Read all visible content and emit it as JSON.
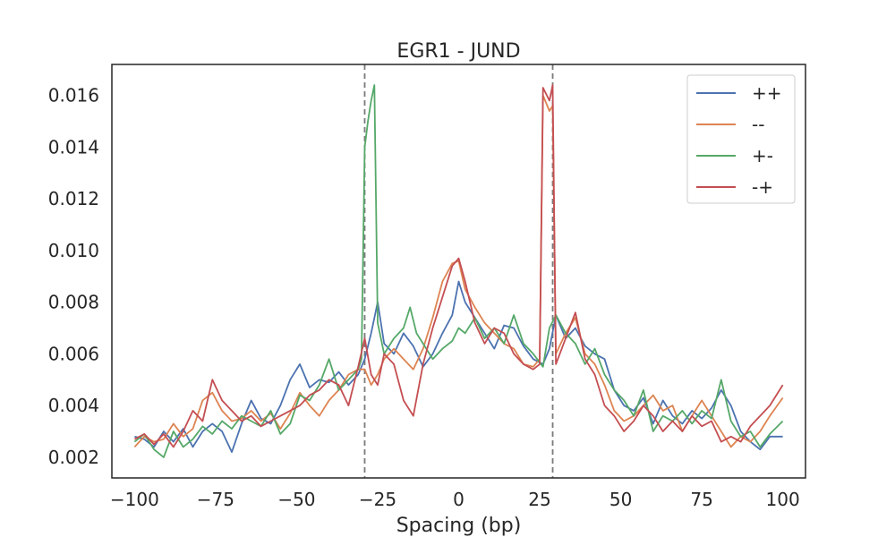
{
  "chart_data": {
    "type": "line",
    "title": "EGR1 - JUND",
    "xlabel": "Spacing (bp)",
    "ylabel": "",
    "xlim": [
      -107,
      107
    ],
    "ylim": [
      0.0012,
      0.0172
    ],
    "x_ticks": [
      -100,
      -75,
      -50,
      -25,
      0,
      25,
      50,
      75,
      100
    ],
    "x_tick_labels": [
      "−100",
      "−75",
      "−50",
      "−25",
      "0",
      "25",
      "50",
      "75",
      "100"
    ],
    "y_ticks": [
      0.002,
      0.004,
      0.006,
      0.008,
      0.01,
      0.012,
      0.014,
      0.016
    ],
    "y_tick_labels": [
      "0.002",
      "0.004",
      "0.006",
      "0.008",
      "0.010",
      "0.012",
      "0.014",
      "0.016"
    ],
    "grid": false,
    "legend_position": "top-right",
    "reference_lines": [
      -29,
      29
    ],
    "series": [
      {
        "name": "++",
        "color": "#4c72b0",
        "points": [
          [
            -100,
            0.0028
          ],
          [
            -97,
            0.0027
          ],
          [
            -94,
            0.0024
          ],
          [
            -91,
            0.003
          ],
          [
            -88,
            0.0026
          ],
          [
            -85,
            0.0031
          ],
          [
            -82,
            0.0024
          ],
          [
            -79,
            0.003
          ],
          [
            -76,
            0.0033
          ],
          [
            -73,
            0.003
          ],
          [
            -70,
            0.0022
          ],
          [
            -67,
            0.0033
          ],
          [
            -64,
            0.0042
          ],
          [
            -61,
            0.0035
          ],
          [
            -58,
            0.0033
          ],
          [
            -55,
            0.004
          ],
          [
            -52,
            0.005
          ],
          [
            -49,
            0.0056
          ],
          [
            -46,
            0.0047
          ],
          [
            -43,
            0.005
          ],
          [
            -40,
            0.0049
          ],
          [
            -37,
            0.0053
          ],
          [
            -34,
            0.0048
          ],
          [
            -31,
            0.0052
          ],
          [
            -29,
            0.0058
          ],
          [
            -27,
            0.0068
          ],
          [
            -25,
            0.008
          ],
          [
            -23,
            0.0064
          ],
          [
            -20,
            0.006
          ],
          [
            -17,
            0.0068
          ],
          [
            -14,
            0.0063
          ],
          [
            -11,
            0.0055
          ],
          [
            -8,
            0.006
          ],
          [
            -5,
            0.0068
          ],
          [
            -2,
            0.0075
          ],
          [
            0,
            0.0088
          ],
          [
            2,
            0.008
          ],
          [
            5,
            0.0074
          ],
          [
            8,
            0.0068
          ],
          [
            11,
            0.0062
          ],
          [
            14,
            0.0071
          ],
          [
            17,
            0.007
          ],
          [
            20,
            0.0063
          ],
          [
            23,
            0.0058
          ],
          [
            26,
            0.0056
          ],
          [
            28,
            0.0062
          ],
          [
            30,
            0.0075
          ],
          [
            33,
            0.0066
          ],
          [
            36,
            0.007
          ],
          [
            39,
            0.0063
          ],
          [
            42,
            0.006
          ],
          [
            45,
            0.0058
          ],
          [
            48,
            0.0046
          ],
          [
            51,
            0.004
          ],
          [
            54,
            0.0038
          ],
          [
            57,
            0.0043
          ],
          [
            60,
            0.0033
          ],
          [
            63,
            0.0042
          ],
          [
            66,
            0.0036
          ],
          [
            69,
            0.0033
          ],
          [
            72,
            0.0038
          ],
          [
            75,
            0.0035
          ],
          [
            78,
            0.0039
          ],
          [
            81,
            0.0046
          ],
          [
            84,
            0.004
          ],
          [
            87,
            0.003
          ],
          [
            90,
            0.0026
          ],
          [
            93,
            0.0023
          ],
          [
            96,
            0.0028
          ],
          [
            100,
            0.0028
          ]
        ]
      },
      {
        "name": "--",
        "color": "#dd8452",
        "points": [
          [
            -100,
            0.0024
          ],
          [
            -97,
            0.0028
          ],
          [
            -94,
            0.0026
          ],
          [
            -91,
            0.0027
          ],
          [
            -88,
            0.0033
          ],
          [
            -85,
            0.0028
          ],
          [
            -82,
            0.0031
          ],
          [
            -79,
            0.0042
          ],
          [
            -76,
            0.0045
          ],
          [
            -73,
            0.0038
          ],
          [
            -70,
            0.0034
          ],
          [
            -67,
            0.0035
          ],
          [
            -64,
            0.0038
          ],
          [
            -61,
            0.0034
          ],
          [
            -58,
            0.0037
          ],
          [
            -55,
            0.0031
          ],
          [
            -52,
            0.0037
          ],
          [
            -49,
            0.0045
          ],
          [
            -46,
            0.004
          ],
          [
            -43,
            0.0036
          ],
          [
            -40,
            0.0042
          ],
          [
            -37,
            0.0046
          ],
          [
            -34,
            0.0052
          ],
          [
            -31,
            0.0054
          ],
          [
            -29,
            0.0054
          ],
          [
            -27,
            0.0048
          ],
          [
            -25,
            0.0052
          ],
          [
            -23,
            0.0058
          ],
          [
            -20,
            0.0062
          ],
          [
            -17,
            0.0058
          ],
          [
            -14,
            0.0054
          ],
          [
            -11,
            0.0062
          ],
          [
            -8,
            0.0074
          ],
          [
            -5,
            0.0088
          ],
          [
            -2,
            0.0095
          ],
          [
            0,
            0.0096
          ],
          [
            2,
            0.0085
          ],
          [
            5,
            0.0078
          ],
          [
            8,
            0.0072
          ],
          [
            11,
            0.0068
          ],
          [
            14,
            0.0064
          ],
          [
            17,
            0.0062
          ],
          [
            20,
            0.0056
          ],
          [
            23,
            0.0055
          ],
          [
            25,
            0.0058
          ],
          [
            26,
            0.016
          ],
          [
            28,
            0.0154
          ],
          [
            29,
            0.0156
          ],
          [
            30,
            0.006
          ],
          [
            33,
            0.0068
          ],
          [
            36,
            0.0074
          ],
          [
            39,
            0.006
          ],
          [
            42,
            0.0056
          ],
          [
            45,
            0.0048
          ],
          [
            48,
            0.0038
          ],
          [
            51,
            0.0034
          ],
          [
            54,
            0.0036
          ],
          [
            57,
            0.004
          ],
          [
            60,
            0.0044
          ],
          [
            63,
            0.0038
          ],
          [
            66,
            0.004
          ],
          [
            69,
            0.003
          ],
          [
            72,
            0.0036
          ],
          [
            75,
            0.0042
          ],
          [
            78,
            0.0036
          ],
          [
            81,
            0.003
          ],
          [
            84,
            0.0024
          ],
          [
            87,
            0.0028
          ],
          [
            90,
            0.0026
          ],
          [
            93,
            0.003
          ],
          [
            96,
            0.0036
          ],
          [
            100,
            0.0043
          ]
        ]
      },
      {
        "name": "+-",
        "color": "#55a868",
        "points": [
          [
            -100,
            0.0026
          ],
          [
            -97,
            0.0029
          ],
          [
            -94,
            0.0023
          ],
          [
            -91,
            0.002
          ],
          [
            -88,
            0.003
          ],
          [
            -85,
            0.0024
          ],
          [
            -82,
            0.0027
          ],
          [
            -79,
            0.0032
          ],
          [
            -76,
            0.0029
          ],
          [
            -73,
            0.0034
          ],
          [
            -70,
            0.0031
          ],
          [
            -67,
            0.0036
          ],
          [
            -64,
            0.0034
          ],
          [
            -61,
            0.0032
          ],
          [
            -58,
            0.0038
          ],
          [
            -55,
            0.0029
          ],
          [
            -52,
            0.0033
          ],
          [
            -49,
            0.0044
          ],
          [
            -46,
            0.0042
          ],
          [
            -43,
            0.0048
          ],
          [
            -40,
            0.0058
          ],
          [
            -37,
            0.0046
          ],
          [
            -34,
            0.005
          ],
          [
            -31,
            0.0054
          ],
          [
            -30,
            0.0058
          ],
          [
            -29,
            0.014
          ],
          [
            -28,
            0.015
          ],
          [
            -27,
            0.0158
          ],
          [
            -26,
            0.0164
          ],
          [
            -25,
            0.0072
          ],
          [
            -23,
            0.006
          ],
          [
            -20,
            0.0066
          ],
          [
            -17,
            0.007
          ],
          [
            -15,
            0.0078
          ],
          [
            -13,
            0.0068
          ],
          [
            -11,
            0.0064
          ],
          [
            -8,
            0.0058
          ],
          [
            -5,
            0.0062
          ],
          [
            -2,
            0.0065
          ],
          [
            0,
            0.007
          ],
          [
            2,
            0.0068
          ],
          [
            5,
            0.0074
          ],
          [
            8,
            0.0066
          ],
          [
            11,
            0.007
          ],
          [
            14,
            0.0064
          ],
          [
            17,
            0.0075
          ],
          [
            20,
            0.0064
          ],
          [
            23,
            0.006
          ],
          [
            26,
            0.0055
          ],
          [
            28,
            0.007
          ],
          [
            30,
            0.0075
          ],
          [
            33,
            0.0068
          ],
          [
            36,
            0.0064
          ],
          [
            39,
            0.0056
          ],
          [
            42,
            0.0062
          ],
          [
            45,
            0.0052
          ],
          [
            48,
            0.0046
          ],
          [
            51,
            0.0042
          ],
          [
            54,
            0.0036
          ],
          [
            57,
            0.0046
          ],
          [
            60,
            0.003
          ],
          [
            63,
            0.0036
          ],
          [
            66,
            0.0034
          ],
          [
            69,
            0.0038
          ],
          [
            72,
            0.0033
          ],
          [
            75,
            0.0038
          ],
          [
            78,
            0.0035
          ],
          [
            81,
            0.005
          ],
          [
            84,
            0.0034
          ],
          [
            87,
            0.0028
          ],
          [
            90,
            0.003
          ],
          [
            93,
            0.0024
          ],
          [
            96,
            0.0029
          ],
          [
            100,
            0.0034
          ]
        ]
      },
      {
        "name": "-+",
        "color": "#c44e52",
        "points": [
          [
            -100,
            0.0027
          ],
          [
            -97,
            0.0029
          ],
          [
            -94,
            0.0025
          ],
          [
            -91,
            0.0029
          ],
          [
            -88,
            0.0024
          ],
          [
            -85,
            0.003
          ],
          [
            -82,
            0.0038
          ],
          [
            -79,
            0.0034
          ],
          [
            -76,
            0.005
          ],
          [
            -73,
            0.0042
          ],
          [
            -70,
            0.0038
          ],
          [
            -67,
            0.0034
          ],
          [
            -64,
            0.0036
          ],
          [
            -61,
            0.0032
          ],
          [
            -58,
            0.0034
          ],
          [
            -55,
            0.0036
          ],
          [
            -52,
            0.0038
          ],
          [
            -49,
            0.004
          ],
          [
            -46,
            0.0044
          ],
          [
            -43,
            0.0046
          ],
          [
            -40,
            0.005
          ],
          [
            -37,
            0.0048
          ],
          [
            -34,
            0.004
          ],
          [
            -31,
            0.0055
          ],
          [
            -29,
            0.0066
          ],
          [
            -27,
            0.0052
          ],
          [
            -25,
            0.0048
          ],
          [
            -23,
            0.006
          ],
          [
            -20,
            0.0056
          ],
          [
            -17,
            0.0042
          ],
          [
            -14,
            0.0036
          ],
          [
            -11,
            0.0056
          ],
          [
            -8,
            0.007
          ],
          [
            -5,
            0.0082
          ],
          [
            -2,
            0.0094
          ],
          [
            0,
            0.0097
          ],
          [
            2,
            0.0088
          ],
          [
            5,
            0.0072
          ],
          [
            8,
            0.0064
          ],
          [
            11,
            0.007
          ],
          [
            14,
            0.0068
          ],
          [
            17,
            0.006
          ],
          [
            20,
            0.0056
          ],
          [
            23,
            0.0054
          ],
          [
            25,
            0.0056
          ],
          [
            26,
            0.0163
          ],
          [
            28,
            0.0158
          ],
          [
            29,
            0.0164
          ],
          [
            30,
            0.0056
          ],
          [
            33,
            0.0066
          ],
          [
            36,
            0.0076
          ],
          [
            39,
            0.0058
          ],
          [
            42,
            0.0052
          ],
          [
            45,
            0.004
          ],
          [
            48,
            0.0036
          ],
          [
            51,
            0.003
          ],
          [
            54,
            0.0034
          ],
          [
            57,
            0.004
          ],
          [
            60,
            0.0036
          ],
          [
            63,
            0.003
          ],
          [
            66,
            0.0034
          ],
          [
            69,
            0.003
          ],
          [
            72,
            0.0036
          ],
          [
            75,
            0.0032
          ],
          [
            78,
            0.0034
          ],
          [
            81,
            0.0026
          ],
          [
            84,
            0.0028
          ],
          [
            87,
            0.0026
          ],
          [
            90,
            0.0032
          ],
          [
            93,
            0.0036
          ],
          [
            96,
            0.004
          ],
          [
            100,
            0.0048
          ]
        ]
      }
    ]
  }
}
